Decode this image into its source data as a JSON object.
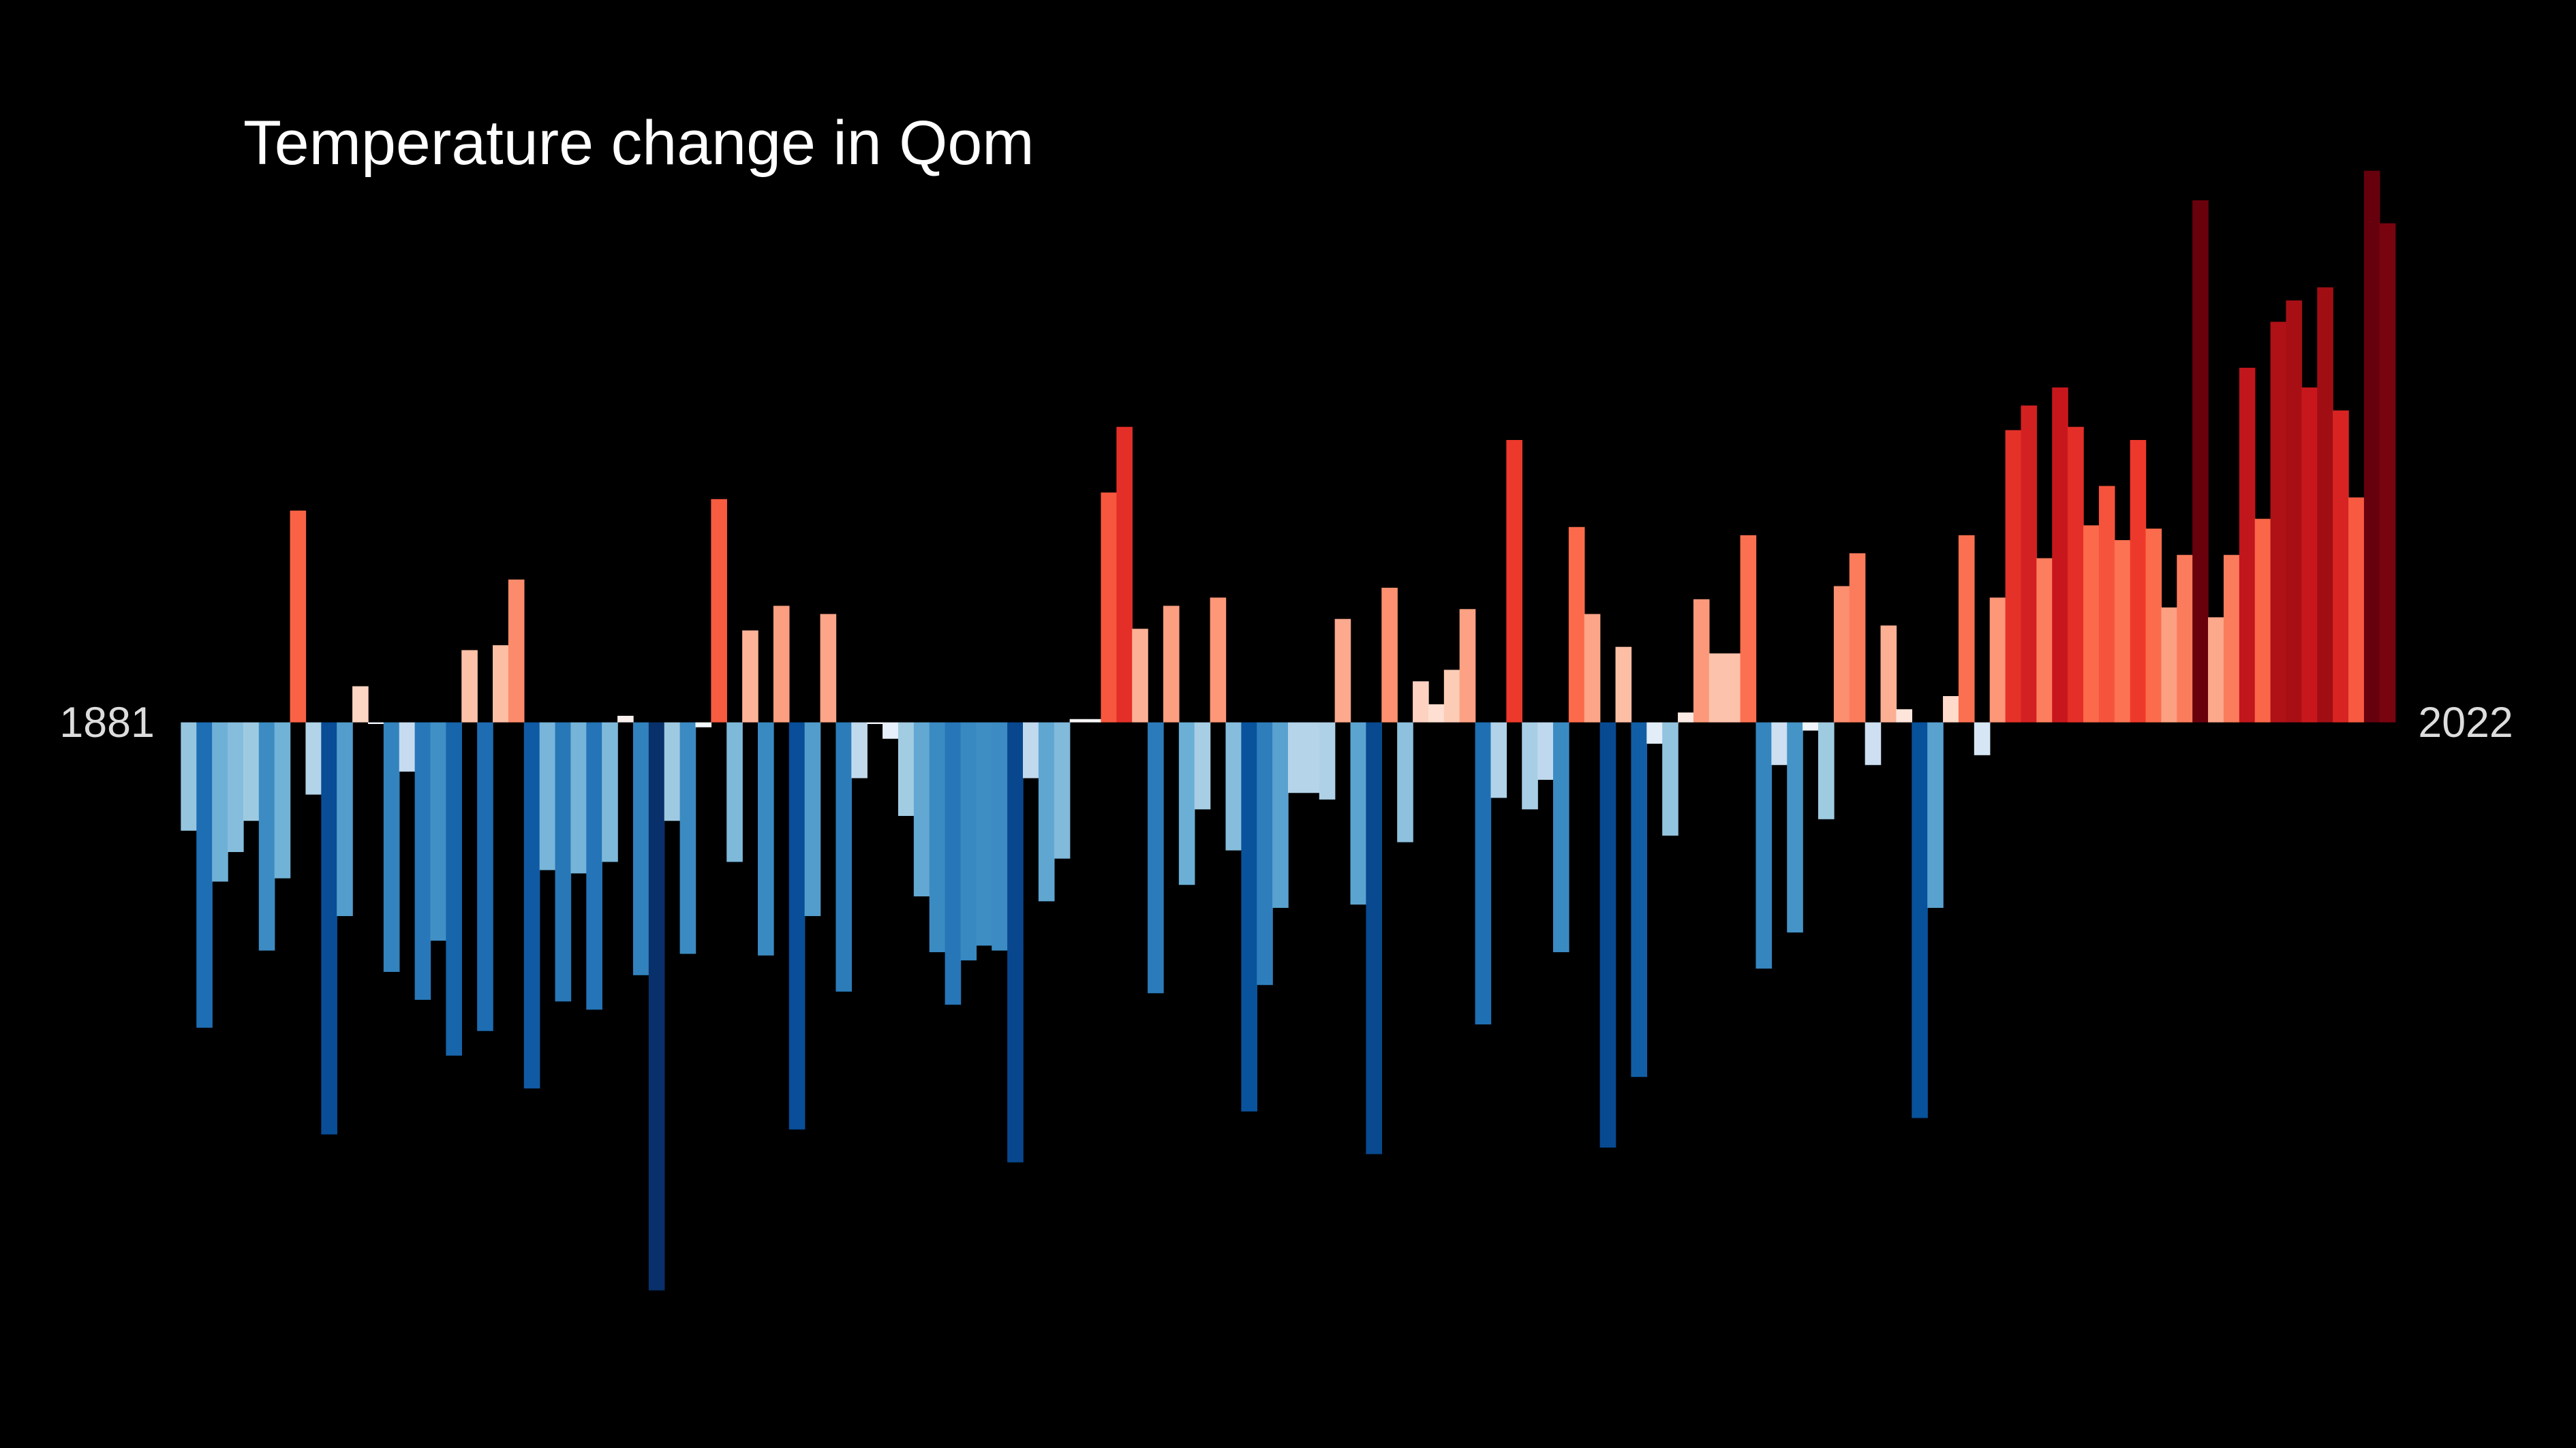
{
  "chart_data": {
    "type": "bar",
    "title": "Temperature change in Qom",
    "xlim": [
      1881,
      2022
    ],
    "xticks": [
      1881,
      2022
    ],
    "ylim": [
      -4.42,
      4.4
    ],
    "values": [
      -0.66,
      -1.86,
      -0.97,
      -0.79,
      -0.6,
      -1.39,
      -0.95,
      1.29,
      -0.44,
      -2.51,
      -1.18,
      0.22,
      -0.01,
      -1.52,
      -0.3,
      -1.69,
      -1.33,
      -2.03,
      0.44,
      -1.88,
      0.47,
      0.87,
      -2.23,
      -0.9,
      -1.7,
      -0.92,
      -1.75,
      -0.85,
      0.04,
      -1.54,
      -3.46,
      -0.6,
      -1.41,
      -0.03,
      1.36,
      -0.85,
      0.56,
      -1.42,
      0.71,
      -2.48,
      -1.18,
      0.66,
      -1.64,
      -0.34,
      -0.01,
      -0.1,
      -0.57,
      -1.06,
      -1.4,
      -1.72,
      -1.45,
      -1.36,
      -1.39,
      -2.68,
      -0.34,
      -1.09,
      -0.83,
      0.02,
      0.02,
      1.4,
      1.8,
      0.57,
      -1.65,
      0.71,
      -0.99,
      -0.53,
      0.76,
      -0.78,
      -2.37,
      -1.6,
      -1.13,
      -0.43,
      -0.43,
      -0.47,
      0.63,
      -1.11,
      -2.63,
      0.82,
      -0.73,
      0.25,
      0.11,
      0.32,
      0.69,
      -1.84,
      -0.46,
      1.72,
      -0.53,
      -0.35,
      -1.4,
      1.19,
      0.66,
      -2.59,
      0.46,
      -2.16,
      -0.13,
      -0.69,
      0.06,
      0.75,
      0.42,
      0.42,
      1.14,
      -1.5,
      -0.26,
      -1.28,
      -0.05,
      -0.59,
      0.83,
      1.03,
      -0.26,
      0.59,
      0.08,
      -2.41,
      -1.13,
      0.16,
      1.14,
      -0.2,
      0.76,
      1.78,
      1.93,
      1.0,
      2.04,
      1.8,
      1.2,
      1.44,
      1.11,
      1.72,
      1.18,
      0.7,
      1.02,
      3.18,
      0.64,
      1.02,
      2.16,
      1.24,
      2.44,
      2.57,
      2.04,
      2.65,
      1.9,
      1.37,
      3.36,
      3.04
    ],
    "colormap": [
      [
        -3.3,
        "#08306b"
      ],
      [
        -2.4,
        "#08519c"
      ],
      [
        -1.8,
        "#2171b5"
      ],
      [
        -1.3,
        "#4292c6"
      ],
      [
        -1.0,
        "#6baed6"
      ],
      [
        -0.6,
        "#9ecae1"
      ],
      [
        -0.3,
        "#c6dbef"
      ],
      [
        0,
        "#f7fbff"
      ],
      [
        0.1,
        "#fee0d2"
      ],
      [
        0.5,
        "#fcbba1"
      ],
      [
        0.8,
        "#fc9272"
      ],
      [
        1.2,
        "#fb6a4a"
      ],
      [
        1.7,
        "#ef3b2c"
      ],
      [
        2.0,
        "#cb181d"
      ],
      [
        2.6,
        "#a50f15"
      ],
      [
        3.2,
        "#67000d"
      ]
    ]
  }
}
